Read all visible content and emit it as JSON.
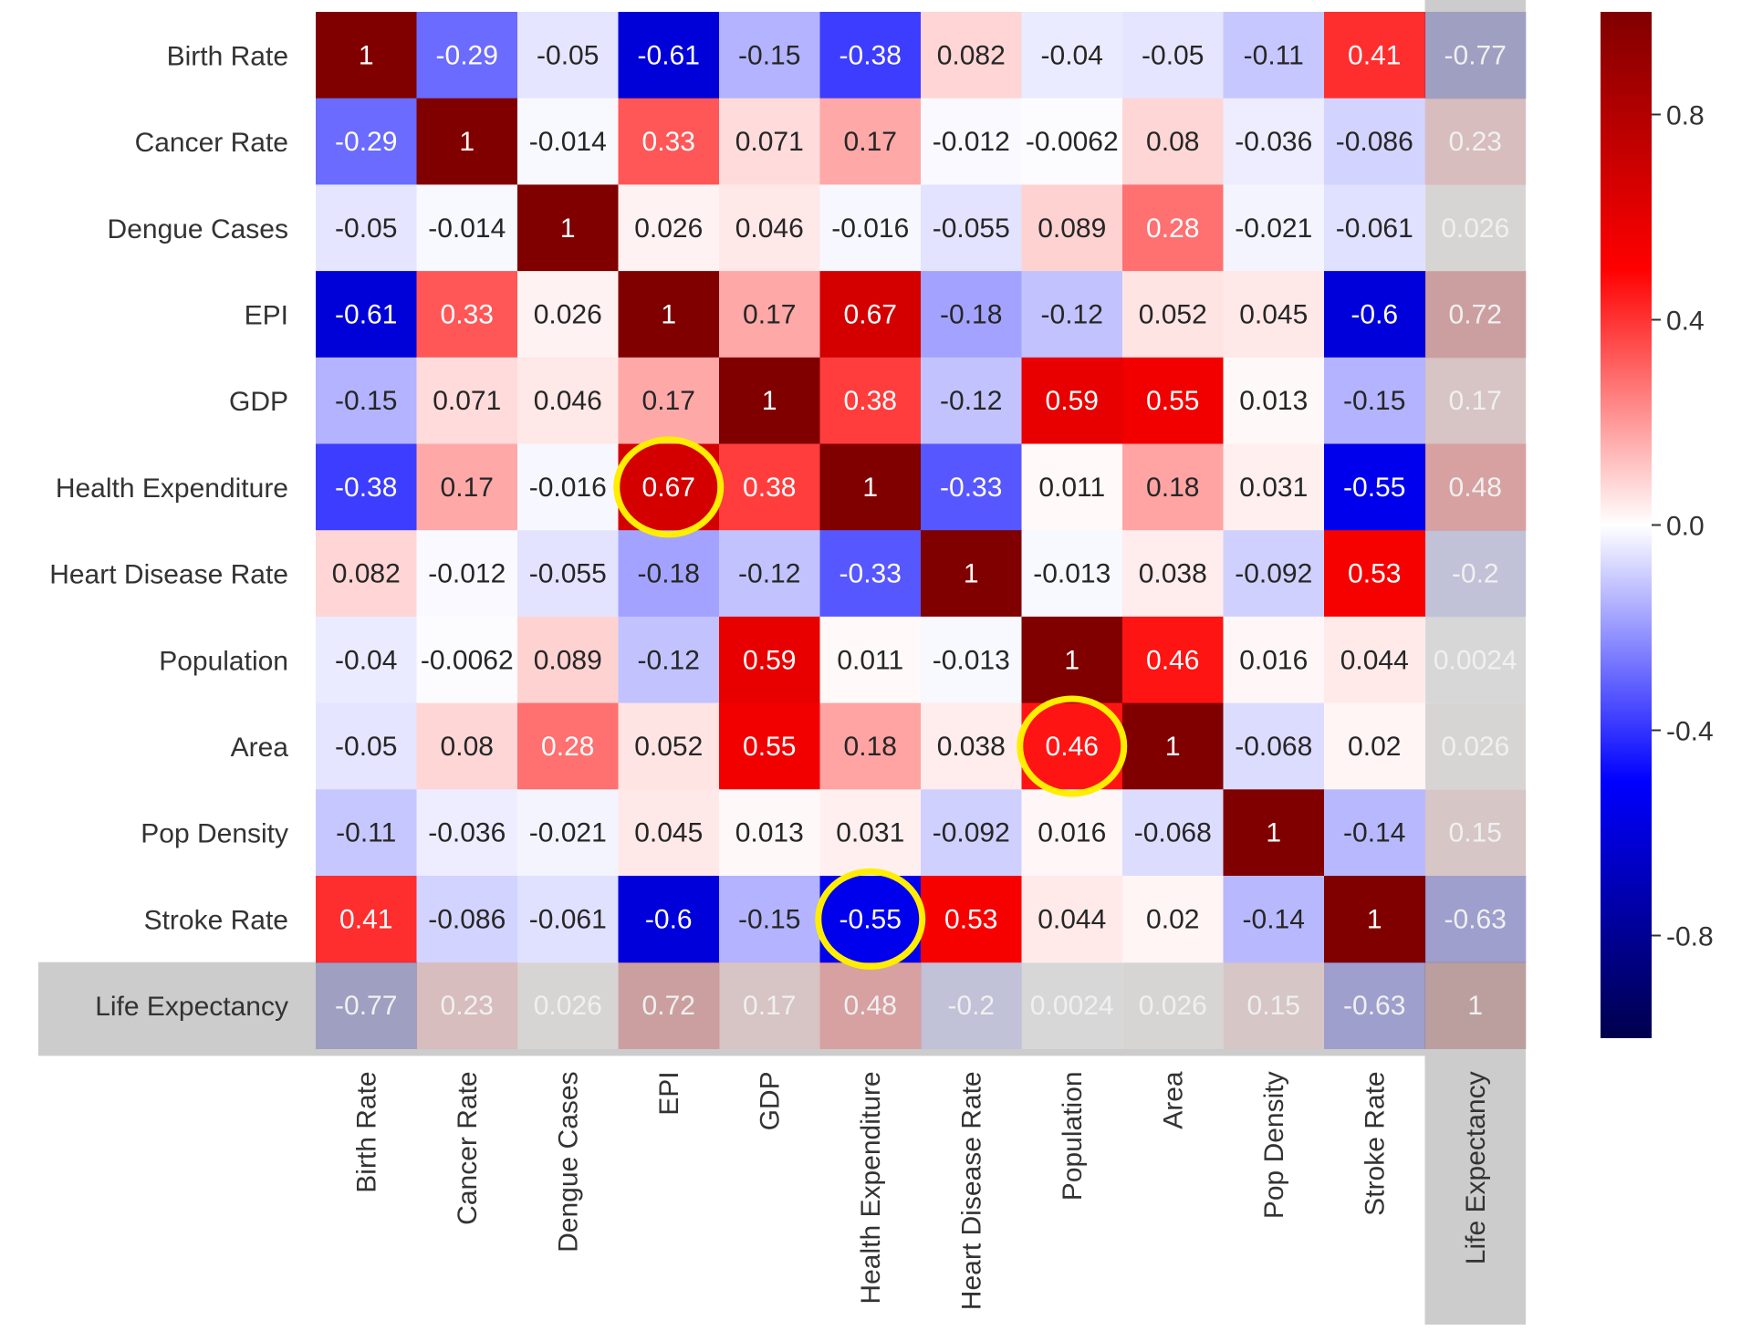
{
  "chart_data": {
    "type": "heatmap",
    "title": "",
    "variables": [
      "Birth Rate",
      "Cancer Rate",
      "Dengue Cases",
      "EPI",
      "GDP",
      "Health Expenditure",
      "Heart Disease Rate",
      "Population",
      "Area",
      "Pop Density",
      "Stroke Rate",
      "Life Expectancy"
    ],
    "matrix": [
      [
        1,
        -0.29,
        -0.05,
        -0.61,
        -0.15,
        -0.38,
        0.082,
        -0.04,
        -0.05,
        -0.11,
        0.41,
        -0.77
      ],
      [
        -0.29,
        1,
        -0.014,
        0.33,
        0.071,
        0.17,
        -0.012,
        -0.0062,
        0.08,
        -0.036,
        -0.086,
        0.23
      ],
      [
        -0.05,
        -0.014,
        1,
        0.026,
        0.046,
        -0.016,
        -0.055,
        0.089,
        0.28,
        -0.021,
        -0.061,
        0.026
      ],
      [
        -0.61,
        0.33,
        0.026,
        1,
        0.17,
        0.67,
        -0.18,
        -0.12,
        0.052,
        0.045,
        -0.6,
        0.72
      ],
      [
        -0.15,
        0.071,
        0.046,
        0.17,
        1,
        0.38,
        -0.12,
        0.59,
        0.55,
        0.013,
        -0.15,
        0.17
      ],
      [
        -0.38,
        0.17,
        -0.016,
        0.67,
        0.38,
        1,
        -0.33,
        0.011,
        0.18,
        0.031,
        -0.55,
        0.48
      ],
      [
        0.082,
        -0.012,
        -0.055,
        -0.18,
        -0.12,
        -0.33,
        1,
        -0.013,
        0.038,
        -0.092,
        0.53,
        -0.2
      ],
      [
        -0.04,
        -0.0062,
        0.089,
        -0.12,
        0.59,
        0.011,
        -0.013,
        1,
        0.46,
        0.016,
        0.044,
        0.0024
      ],
      [
        -0.05,
        0.08,
        0.28,
        0.052,
        0.55,
        0.18,
        0.038,
        0.46,
        1,
        -0.068,
        0.02,
        0.026
      ],
      [
        -0.11,
        -0.036,
        -0.021,
        0.045,
        0.013,
        0.031,
        -0.092,
        0.016,
        -0.068,
        1,
        -0.14,
        0.15
      ],
      [
        0.41,
        -0.086,
        -0.061,
        -0.6,
        -0.15,
        -0.55,
        0.53,
        0.044,
        0.02,
        -0.14,
        1,
        -0.63
      ],
      [
        -0.77,
        0.23,
        0.026,
        0.72,
        0.17,
        0.48,
        -0.2,
        0.0024,
        0.026,
        0.15,
        -0.63,
        1
      ]
    ],
    "value_labels": [
      [
        "1",
        "-0.29",
        "-0.05",
        "-0.61",
        "-0.15",
        "-0.38",
        "0.082",
        "-0.04",
        "-0.05",
        "-0.11",
        "0.41",
        "-0.77"
      ],
      [
        "-0.29",
        "1",
        "-0.014",
        "0.33",
        "0.071",
        "0.17",
        "-0.012",
        "-0.0062",
        "0.08",
        "-0.036",
        "-0.086",
        "0.23"
      ],
      [
        "-0.05",
        "-0.014",
        "1",
        "0.026",
        "0.046",
        "-0.016",
        "-0.055",
        "0.089",
        "0.28",
        "-0.021",
        "-0.061",
        "0.026"
      ],
      [
        "-0.61",
        "0.33",
        "0.026",
        "1",
        "0.17",
        "0.67",
        "-0.18",
        "-0.12",
        "0.052",
        "0.045",
        "-0.6",
        "0.72"
      ],
      [
        "-0.15",
        "0.071",
        "0.046",
        "0.17",
        "1",
        "0.38",
        "-0.12",
        "0.59",
        "0.55",
        "0.013",
        "-0.15",
        "0.17"
      ],
      [
        "-0.38",
        "0.17",
        "-0.016",
        "0.67",
        "0.38",
        "1",
        "-0.33",
        "0.011",
        "0.18",
        "0.031",
        "-0.55",
        "0.48"
      ],
      [
        "0.082",
        "-0.012",
        "-0.055",
        "-0.18",
        "-0.12",
        "-0.33",
        "1",
        "-0.013",
        "0.038",
        "-0.092",
        "0.53",
        "-0.2"
      ],
      [
        "-0.04",
        "-0.0062",
        "0.089",
        "-0.12",
        "0.59",
        "0.011",
        "-0.013",
        "1",
        "0.46",
        "0.016",
        "0.044",
        "0.0024"
      ],
      [
        "-0.05",
        "0.08",
        "0.28",
        "0.052",
        "0.55",
        "0.18",
        "0.038",
        "0.46",
        "1",
        "-0.068",
        "0.02",
        "0.026"
      ],
      [
        "-0.11",
        "-0.036",
        "-0.021",
        "0.045",
        "0.013",
        "0.031",
        "-0.092",
        "0.016",
        "-0.068",
        "1",
        "-0.14",
        "0.15"
      ],
      [
        "0.41",
        "-0.086",
        "-0.061",
        "-0.6",
        "-0.15",
        "-0.55",
        "0.53",
        "0.044",
        "0.02",
        "-0.14",
        "1",
        "-0.63"
      ],
      [
        "-0.77",
        "0.23",
        "0.026",
        "0.72",
        "0.17",
        "0.48",
        "-0.2",
        "0.0024",
        "0.026",
        "0.15",
        "-0.63",
        "1"
      ]
    ],
    "colormap": "seismic",
    "colorbar": {
      "range": [
        -1,
        1
      ],
      "ticks": [
        0.8,
        0.4,
        0.0,
        -0.4,
        -0.8
      ],
      "tick_labels": [
        "0.8",
        "0.4",
        "0.0",
        "-0.4",
        "-0.8"
      ],
      "position": "right"
    },
    "faded": {
      "row": "Life Expectancy",
      "column": "Life Expectancy",
      "overlay_color": "#cccccc"
    },
    "highlights": [
      {
        "row": "Health Expenditure",
        "column": "EPI",
        "value": 0.67
      },
      {
        "row": "Area",
        "column": "Population",
        "value": 0.46
      },
      {
        "row": "Stroke Rate",
        "column": "Health Expenditure",
        "value": -0.55
      }
    ],
    "highlight_color": "#ffee00"
  }
}
